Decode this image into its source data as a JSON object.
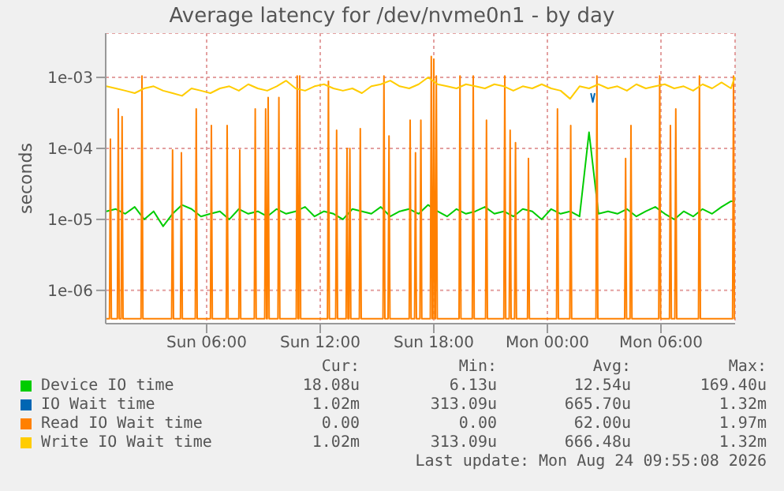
{
  "chart_data": {
    "type": "line",
    "title": "Average latency for /dev/nvme0n1 - by day",
    "ylabel": "seconds",
    "log": "y",
    "grid": true,
    "legend": "bottom",
    "xlim": [
      "2026-08-23T00:40",
      "2026-08-24T09:55"
    ],
    "xticks": [
      {
        "value": "2026-08-23T06:00",
        "label": "Sun 06:00"
      },
      {
        "value": "2026-08-23T12:00",
        "label": "Sun 12:00"
      },
      {
        "value": "2026-08-23T18:00",
        "label": "Sun 18:00"
      },
      {
        "value": "2026-08-24T00:00",
        "label": "Mon 00:00"
      },
      {
        "value": "2026-08-24T06:00",
        "label": "Mon 06:00"
      }
    ],
    "ylim": [
      3.4e-07,
      0.0042
    ],
    "yticks": [
      {
        "value": 1e-06,
        "label": "1e-06"
      },
      {
        "value": 1e-05,
        "label": "1e-05"
      },
      {
        "value": 0.0001,
        "label": "1e-04"
      },
      {
        "value": 0.001,
        "label": "1e-03"
      }
    ],
    "x": [
      "2026-08-23T00:42",
      "2026-08-23T01:12",
      "2026-08-23T01:42",
      "2026-08-23T02:12",
      "2026-08-23T02:42",
      "2026-08-23T03:12",
      "2026-08-23T03:42",
      "2026-08-23T04:12",
      "2026-08-23T04:42",
      "2026-08-23T05:12",
      "2026-08-23T05:42",
      "2026-08-23T06:12",
      "2026-08-23T06:42",
      "2026-08-23T07:12",
      "2026-08-23T07:42",
      "2026-08-23T08:12",
      "2026-08-23T08:42",
      "2026-08-23T09:12",
      "2026-08-23T09:42",
      "2026-08-23T10:12",
      "2026-08-23T10:42",
      "2026-08-23T11:12",
      "2026-08-23T11:42",
      "2026-08-23T12:12",
      "2026-08-23T12:42",
      "2026-08-23T13:12",
      "2026-08-23T13:42",
      "2026-08-23T14:12",
      "2026-08-23T14:42",
      "2026-08-23T15:12",
      "2026-08-23T15:42",
      "2026-08-23T16:12",
      "2026-08-23T16:42",
      "2026-08-23T17:12",
      "2026-08-23T17:42",
      "2026-08-23T18:12",
      "2026-08-23T18:42",
      "2026-08-23T19:12",
      "2026-08-23T19:42",
      "2026-08-23T20:12",
      "2026-08-23T20:42",
      "2026-08-23T21:12",
      "2026-08-23T21:42",
      "2026-08-23T22:12",
      "2026-08-23T22:42",
      "2026-08-23T23:12",
      "2026-08-23T23:42",
      "2026-08-24T00:12",
      "2026-08-24T00:42",
      "2026-08-24T01:12",
      "2026-08-24T01:42",
      "2026-08-24T02:12",
      "2026-08-24T02:42",
      "2026-08-24T03:12",
      "2026-08-24T03:42",
      "2026-08-24T04:12",
      "2026-08-24T04:42",
      "2026-08-24T05:12",
      "2026-08-24T05:42",
      "2026-08-24T06:12",
      "2026-08-24T06:42",
      "2026-08-24T07:12",
      "2026-08-24T07:42",
      "2026-08-24T08:12",
      "2026-08-24T08:42",
      "2026-08-24T09:12",
      "2026-08-24T09:42",
      "2026-08-24T09:54"
    ],
    "series": [
      {
        "name": "Device IO time",
        "color": "#00cc00",
        "values": [
          1.3e-05,
          1.4e-05,
          1.2e-05,
          1.5e-05,
          1e-05,
          1.3e-05,
          8e-06,
          1.2e-05,
          1.6e-05,
          1.4e-05,
          1.1e-05,
          1.2e-05,
          1.3e-05,
          1e-05,
          1.4e-05,
          1.2e-05,
          1.3e-05,
          1.1e-05,
          1.4e-05,
          1.2e-05,
          1.3e-05,
          1.5e-05,
          1.1e-05,
          1.3e-05,
          1.2e-05,
          1e-05,
          1.4e-05,
          1.3e-05,
          1.2e-05,
          1.5e-05,
          1.1e-05,
          1.3e-05,
          1.4e-05,
          1.2e-05,
          1.6e-05,
          1.3e-05,
          1.1e-05,
          1.4e-05,
          1.2e-05,
          1.3e-05,
          1.5e-05,
          1.2e-05,
          1.3e-05,
          1.1e-05,
          1.4e-05,
          1.3e-05,
          1e-05,
          1.4e-05,
          1.2e-05,
          1.3e-05,
          1.1e-05,
          0.000169,
          1.2e-05,
          1.3e-05,
          1.2e-05,
          1.4e-05,
          1.1e-05,
          1.3e-05,
          1.5e-05,
          1.2e-05,
          1e-05,
          1.3e-05,
          1.1e-05,
          1.4e-05,
          1.2e-05,
          1.5e-05,
          1.8e-05,
          1.8e-05
        ]
      },
      {
        "name": "IO Wait time",
        "color": "#0066b3",
        "x": [
          "2026-08-24T02:18",
          "2026-08-24T02:24",
          "2026-08-24T02:30"
        ],
        "values": [
          0.0006,
          0.00045,
          0.0006
        ]
      },
      {
        "name": "Read IO Wait time",
        "color": "#ff8000",
        "x": [
          "2026-08-23T00:40",
          "2026-08-23T00:52",
          "2026-08-23T00:55",
          "2026-08-23T00:58",
          "2026-08-23T01:17",
          "2026-08-23T01:20",
          "2026-08-23T01:23",
          "2026-08-23T01:29",
          "2026-08-23T01:32",
          "2026-08-23T01:35",
          "2026-08-23T02:32",
          "2026-08-23T02:35",
          "2026-08-23T02:38",
          "2026-08-23T04:09",
          "2026-08-23T04:12",
          "2026-08-23T04:15",
          "2026-08-23T04:37",
          "2026-08-23T04:40",
          "2026-08-23T04:43",
          "2026-08-23T05:24",
          "2026-08-23T05:27",
          "2026-08-23T05:30",
          "2026-08-23T06:12",
          "2026-08-23T06:15",
          "2026-08-23T06:18",
          "2026-08-23T07:02",
          "2026-08-23T07:05",
          "2026-08-23T07:08",
          "2026-08-23T07:42",
          "2026-08-23T07:45",
          "2026-08-23T07:48",
          "2026-08-23T08:31",
          "2026-08-23T08:34",
          "2026-08-23T08:37",
          "2026-08-23T09:04",
          "2026-08-23T09:07",
          "2026-08-23T09:10",
          "2026-08-23T09:12",
          "2026-08-23T09:15",
          "2026-08-23T09:18",
          "2026-08-23T09:46",
          "2026-08-23T09:49",
          "2026-08-23T09:52",
          "2026-08-23T10:44",
          "2026-08-23T10:47",
          "2026-08-23T10:50",
          "2026-08-23T10:52",
          "2026-08-23T10:55",
          "2026-08-23T10:58",
          "2026-08-23T12:23",
          "2026-08-23T12:26",
          "2026-08-23T12:29",
          "2026-08-23T12:49",
          "2026-08-23T12:52",
          "2026-08-23T12:55",
          "2026-08-23T13:22",
          "2026-08-23T13:25",
          "2026-08-23T13:28",
          "2026-08-23T13:31",
          "2026-08-23T13:34",
          "2026-08-23T13:37",
          "2026-08-23T14:04",
          "2026-08-23T14:07",
          "2026-08-23T14:10",
          "2026-08-23T15:19",
          "2026-08-23T15:22",
          "2026-08-23T15:25",
          "2026-08-23T15:35",
          "2026-08-23T15:38",
          "2026-08-23T15:41",
          "2026-08-23T16:42",
          "2026-08-23T16:45",
          "2026-08-23T16:48",
          "2026-08-23T16:59",
          "2026-08-23T17:02",
          "2026-08-23T17:05",
          "2026-08-23T17:16",
          "2026-08-23T17:19",
          "2026-08-23T17:22",
          "2026-08-23T17:49",
          "2026-08-23T17:52",
          "2026-08-23T17:55",
          "2026-08-23T17:57",
          "2026-08-23T18:00",
          "2026-08-23T18:03",
          "2026-08-23T18:05",
          "2026-08-23T18:08",
          "2026-08-23T18:11",
          "2026-08-23T19:20",
          "2026-08-23T19:23",
          "2026-08-23T19:26",
          "2026-08-23T20:02",
          "2026-08-23T20:05",
          "2026-08-23T20:08",
          "2026-08-23T20:44",
          "2026-08-23T20:47",
          "2026-08-23T20:50",
          "2026-08-23T21:42",
          "2026-08-23T21:45",
          "2026-08-23T21:48",
          "2026-08-23T21:59",
          "2026-08-23T22:02",
          "2026-08-23T22:05",
          "2026-08-23T22:16",
          "2026-08-23T22:19",
          "2026-08-23T22:22",
          "2026-08-23T22:57",
          "2026-08-23T23:00",
          "2026-08-23T23:03",
          "2026-08-24T00:29",
          "2026-08-24T00:32",
          "2026-08-24T00:35",
          "2026-08-24T01:11",
          "2026-08-24T01:14",
          "2026-08-24T01:17",
          "2026-08-24T02:34",
          "2026-08-24T02:37",
          "2026-08-24T02:40",
          "2026-08-24T04:05",
          "2026-08-24T04:08",
          "2026-08-24T04:11",
          "2026-08-24T04:22",
          "2026-08-24T04:25",
          "2026-08-24T04:28",
          "2026-08-24T05:53",
          "2026-08-24T05:56",
          "2026-08-24T05:59",
          "2026-08-24T06:27",
          "2026-08-24T06:30",
          "2026-08-24T06:33",
          "2026-08-24T06:44",
          "2026-08-24T06:47",
          "2026-08-24T06:50",
          "2026-08-24T07:59",
          "2026-08-24T08:02",
          "2026-08-24T08:05",
          "2026-08-24T09:47",
          "2026-08-24T09:50",
          "2026-08-24T09:53",
          "2026-08-24T09:55"
        ],
        "values": [
          4e-07,
          4e-07,
          0.000135,
          4e-07,
          4e-07,
          0.00036,
          4e-07,
          4e-07,
          0.00028,
          4e-07,
          4e-07,
          0.00105,
          4e-07,
          4e-07,
          9.5e-05,
          4e-07,
          4e-07,
          8.7e-05,
          4e-07,
          4e-07,
          0.00036,
          4e-07,
          4e-07,
          0.00021,
          4e-07,
          4e-07,
          0.00021,
          4e-07,
          4e-07,
          9.5e-05,
          4e-07,
          4e-07,
          0.00036,
          4e-07,
          4e-07,
          0.00036,
          4e-07,
          4e-07,
          0.00052,
          4e-07,
          4e-07,
          0.00052,
          4e-07,
          4e-07,
          0.00105,
          4e-07,
          4e-07,
          0.00105,
          4e-07,
          4e-07,
          0.00088,
          4e-07,
          4e-07,
          0.00018,
          4e-07,
          4e-07,
          0.0001,
          4e-07,
          4e-07,
          0.0001,
          4e-07,
          4e-07,
          0.00019,
          4e-07,
          4e-07,
          0.00105,
          4e-07,
          4e-07,
          0.00015,
          4e-07,
          4e-07,
          0.00025,
          4e-07,
          4e-07,
          8.7e-05,
          4e-07,
          4e-07,
          0.00025,
          4e-07,
          4e-07,
          0.00197,
          4e-07,
          4e-07,
          0.0018,
          4e-07,
          4e-07,
          0.00105,
          4e-07,
          4e-07,
          0.00105,
          4e-07,
          4e-07,
          0.00105,
          4e-07,
          4e-07,
          0.00025,
          4e-07,
          4e-07,
          0.00105,
          4e-07,
          4e-07,
          0.00018,
          4e-07,
          4e-07,
          0.00012,
          4e-07,
          4e-07,
          7.2e-05,
          4e-07,
          4e-07,
          0.00036,
          4e-07,
          4e-07,
          0.00021,
          4e-07,
          4e-07,
          0.00105,
          4e-07,
          4e-07,
          7.2e-05,
          4e-07,
          4e-07,
          0.00021,
          4e-07,
          4e-07,
          0.00105,
          4e-07,
          4e-07,
          0.00021,
          4e-07,
          4e-07,
          0.00036,
          4e-07,
          4e-07,
          0.00105,
          4e-07,
          4e-07,
          0.00105,
          4e-07,
          4e-07
        ]
      },
      {
        "name": "Write IO Wait time",
        "color": "#ffcc00",
        "values": [
          0.00075,
          0.0007,
          0.00065,
          0.0006,
          0.0007,
          0.00075,
          0.00065,
          0.0006,
          0.00055,
          0.0007,
          0.00065,
          0.0006,
          0.0007,
          0.00075,
          0.00065,
          0.0008,
          0.0007,
          0.00065,
          0.00075,
          0.0009,
          0.0007,
          0.00065,
          0.00075,
          0.0008,
          0.0007,
          0.00065,
          0.0007,
          0.0006,
          0.00075,
          0.0008,
          0.0009,
          0.00075,
          0.0007,
          0.0008,
          0.001,
          0.0008,
          0.00075,
          0.0007,
          0.0008,
          0.00075,
          0.0007,
          0.0008,
          0.00075,
          0.00065,
          0.00075,
          0.0007,
          0.0008,
          0.0007,
          0.00065,
          0.0005,
          0.00075,
          0.0007,
          0.0008,
          0.0007,
          0.00075,
          0.00065,
          0.0008,
          0.0007,
          0.00075,
          0.0008,
          0.0007,
          0.00075,
          0.00065,
          0.0008,
          0.0007,
          0.00085,
          0.0007,
          0.00102
        ]
      }
    ],
    "annotations": [
      "Cur:",
      "Min:",
      "Avg:",
      "Max:",
      "18.08u",
      "6.13u",
      "12.54u",
      "169.40u",
      "1.02m",
      "313.09u",
      "665.70u",
      "1.32m",
      "0.00",
      "0.00",
      "62.00u",
      "1.97m",
      "1.02m",
      "313.09u",
      "666.48u",
      "1.32m",
      "Last update: Mon Aug 24 09:55:08 2026"
    ]
  }
}
